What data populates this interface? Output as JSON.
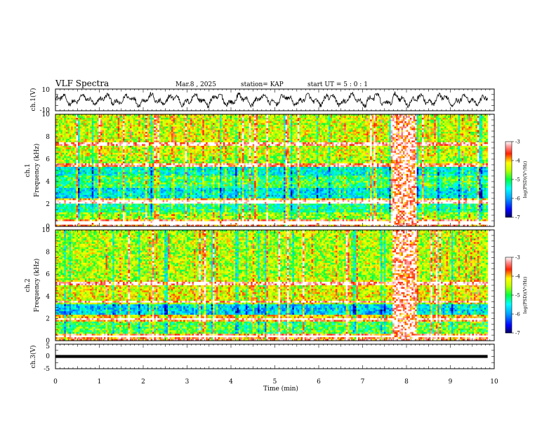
{
  "header": {
    "title": "VLF Spectra",
    "date": "Mar.8 , 2025",
    "station": "station= KAP",
    "start": "start UT = 5 : 0 : 1"
  },
  "chart_data": [
    {
      "type": "line",
      "panel": "ch1-waveform",
      "ylabel": "ch.1(V)",
      "ylim": [
        -10,
        10
      ],
      "yticks": [
        "10",
        "-10"
      ],
      "xlim": [
        0,
        10
      ],
      "color": "#000000",
      "envelope_levels": [
        5.5,
        5.9,
        6.2,
        6.6,
        6.0,
        5.7,
        6.3,
        6.8,
        6.1,
        5.8
      ],
      "mean_level": 0
    },
    {
      "type": "heatmap",
      "panel": "ch1-spectrogram",
      "ylabel": "ch.1\nFrequency (kHz)",
      "ylabel_line1": "ch.1",
      "ylabel_line2": "Frequency (kHz)",
      "xlim": [
        0,
        9.85
      ],
      "ylim": [
        0,
        10
      ],
      "yticks": [
        "0",
        "2",
        "4",
        "6",
        "8",
        "10"
      ],
      "colorbar": {
        "label": "log(PSD)(V²/Hz)",
        "ticks": [
          "-3",
          "-4",
          "-5",
          "-6",
          "-7"
        ],
        "range": [
          -7,
          -3
        ]
      },
      "bands": [
        {
          "f": [
            0,
            0.6
          ],
          "level": -3.6
        },
        {
          "f": [
            0.6,
            1.3
          ],
          "level": -4.6
        },
        {
          "f": [
            1.3,
            2.0
          ],
          "level": -5.2
        },
        {
          "f": [
            2.0,
            2.5
          ],
          "level": -4.0
        },
        {
          "f": [
            2.5,
            3.5
          ],
          "level": -5.6
        },
        {
          "f": [
            3.5,
            4.5
          ],
          "level": -5.0
        },
        {
          "f": [
            4.5,
            5.3
          ],
          "level": -5.5
        },
        {
          "f": [
            5.3,
            6.2
          ],
          "level": -4.6
        },
        {
          "f": [
            6.2,
            10
          ],
          "level": -4.4
        }
      ],
      "strong_lines_khz": [
        0.3,
        2.2,
        5.5,
        7.3
      ],
      "burst_min": [
        7.7,
        8.25
      ]
    },
    {
      "type": "heatmap",
      "panel": "ch2-spectrogram",
      "ylabel_line1": "ch.2",
      "ylabel_line2": "Frequency (kHz)",
      "xlim": [
        0,
        9.85
      ],
      "ylim": [
        0,
        10
      ],
      "yticks": [
        "0",
        "2",
        "4",
        "6",
        "8",
        "10"
      ],
      "colorbar": {
        "label": "log(PSD)(V²/Hz)",
        "ticks": [
          "-3",
          "-4",
          "-5",
          "-6",
          "-7"
        ],
        "range": [
          -7,
          -3
        ]
      },
      "bands": [
        {
          "f": [
            0,
            0.6
          ],
          "level": -3.6
        },
        {
          "f": [
            0.6,
            1.8
          ],
          "level": -4.9
        },
        {
          "f": [
            1.8,
            2.4
          ],
          "level": -4.1
        },
        {
          "f": [
            2.4,
            3.4
          ],
          "level": -5.7
        },
        {
          "f": [
            3.4,
            5.4
          ],
          "level": -4.3
        },
        {
          "f": [
            5.4,
            10
          ],
          "level": -4.5
        }
      ],
      "strong_lines_khz": [
        0.4,
        1.9,
        3.4,
        5.2
      ],
      "burst_min": [
        7.7,
        8.25
      ]
    },
    {
      "type": "line",
      "panel": "ch3-waveform",
      "ylabel": "ch.3(V)",
      "ylim": [
        -5,
        5
      ],
      "yticks": [
        "5",
        "0",
        "-5"
      ],
      "xlim": [
        0,
        10
      ],
      "band": [
        -0.6,
        0.6
      ],
      "band_end": 9.85
    }
  ],
  "xaxis": {
    "label": "Time (min)",
    "ticks": [
      "0",
      "1",
      "2",
      "3",
      "4",
      "5",
      "6",
      "7",
      "8",
      "9",
      "10"
    ],
    "range": [
      0,
      10
    ]
  }
}
